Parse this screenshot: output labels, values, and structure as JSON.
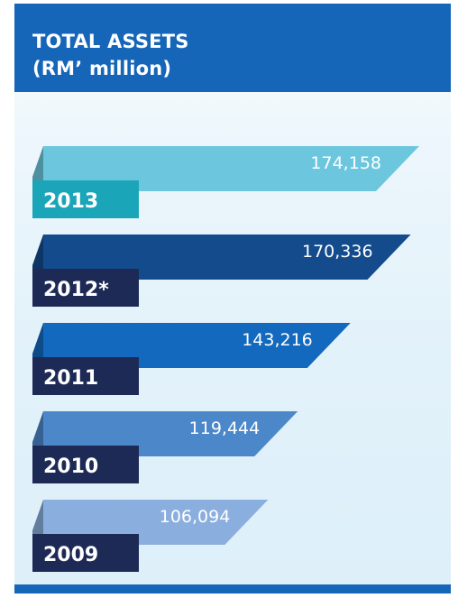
{
  "header": {
    "title_line1": "TOTAL ASSETS",
    "title_line2": "(RM’ million)"
  },
  "chart_data": {
    "type": "bar",
    "orientation": "horizontal",
    "title": "TOTAL ASSETS (RM’ million)",
    "categories": [
      "2013",
      "2012*",
      "2011",
      "2010",
      "2009"
    ],
    "values": [
      174158,
      170336,
      143216,
      119444,
      106094
    ],
    "value_labels": [
      "174,158",
      "170,336",
      "143,216",
      "119,444",
      "106,094"
    ],
    "colors": {
      "bars": [
        "#6cc7de",
        "#134b8c",
        "#1269be",
        "#4b87c9",
        "#8aaedd"
      ],
      "year_boxes": [
        "#1aa5b8",
        "#1d2a55",
        "#1d2a55",
        "#1d2a55",
        "#1d2a55"
      ],
      "header": "#1565b8"
    }
  }
}
